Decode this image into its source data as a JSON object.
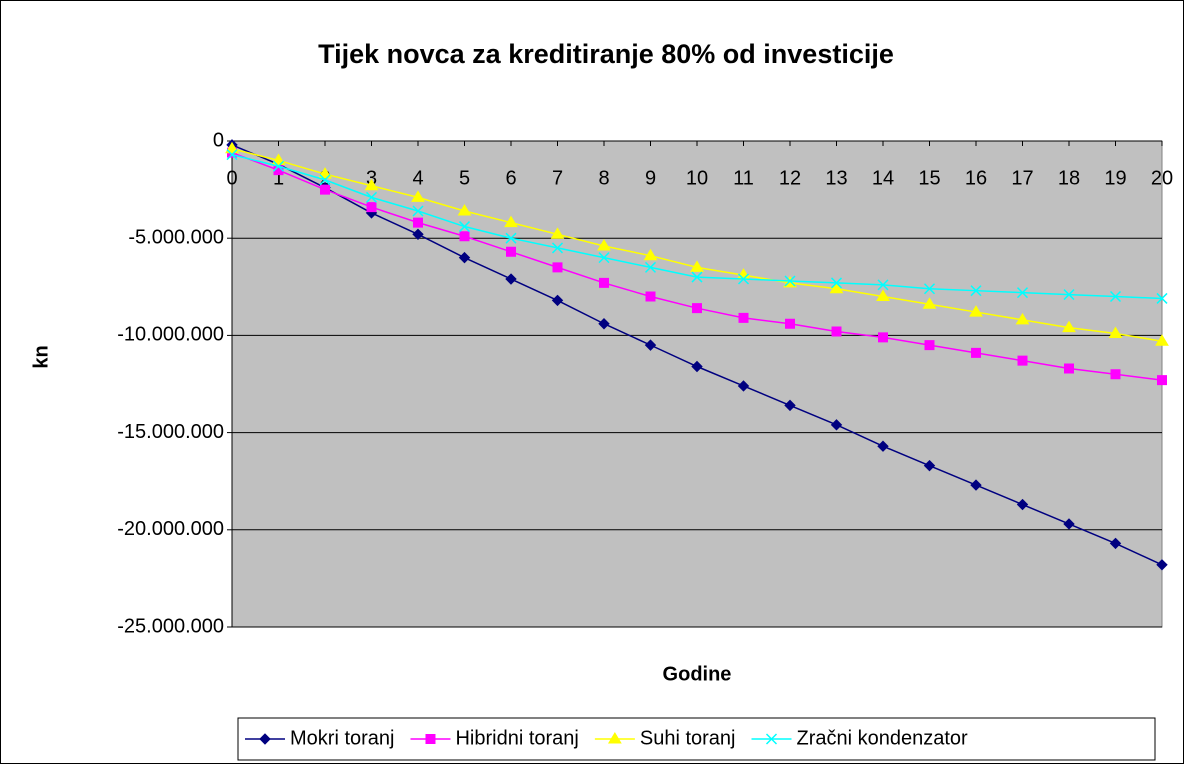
{
  "chart_data": {
    "type": "line",
    "title": "Tijek novca za kreditiranje 80% od investicije",
    "xlabel": "Godine",
    "ylabel": "kn",
    "x": [
      0,
      1,
      2,
      3,
      4,
      5,
      6,
      7,
      8,
      9,
      10,
      11,
      12,
      13,
      14,
      15,
      16,
      17,
      18,
      19,
      20
    ],
    "xlim": [
      0,
      20
    ],
    "xticks": [
      0,
      1,
      2,
      3,
      4,
      5,
      6,
      7,
      8,
      9,
      10,
      11,
      12,
      13,
      14,
      15,
      16,
      17,
      18,
      19,
      20
    ],
    "ylim": [
      -25000000,
      0
    ],
    "yticks": [
      0,
      {
        "value": -5000000,
        "label": "-5.000.000"
      },
      {
        "value": -10000000,
        "label": "-10.000.000"
      },
      {
        "value": -15000000,
        "label": "-15.000.000"
      },
      {
        "value": -20000000,
        "label": "-20.000.000"
      },
      {
        "value": -25000000,
        "label": "-25.000.000"
      }
    ],
    "grid": true,
    "legend": "bottom",
    "series": [
      {
        "name": "Mokri toranj",
        "color": "#000080",
        "marker": "diamond",
        "values": [
          -200000,
          -1200000,
          -2400000,
          -3700000,
          -4800000,
          -6000000,
          -7100000,
          -8200000,
          -9400000,
          -10500000,
          -11600000,
          -12600000,
          -13600000,
          -14600000,
          -15700000,
          -16700000,
          -17700000,
          -18700000,
          -19700000,
          -20700000,
          -21800000
        ]
      },
      {
        "name": "Hibridni toranj",
        "color": "#ff00ff",
        "marker": "square",
        "values": [
          -600000,
          -1500000,
          -2500000,
          -3400000,
          -4200000,
          -4900000,
          -5700000,
          -6500000,
          -7300000,
          -8000000,
          -8600000,
          -9100000,
          -9400000,
          -9800000,
          -10100000,
          -10500000,
          -10900000,
          -11300000,
          -11700000,
          -12000000,
          -12300000
        ]
      },
      {
        "name": "Suhi toranj",
        "color": "#ffff00",
        "marker": "triangle",
        "values": [
          -400000,
          -1000000,
          -1700000,
          -2300000,
          -2900000,
          -3600000,
          -4200000,
          -4800000,
          -5400000,
          -5900000,
          -6500000,
          -6900000,
          -7300000,
          -7600000,
          -8000000,
          -8400000,
          -8800000,
          -9200000,
          -9600000,
          -9900000,
          -10300000
        ]
      },
      {
        "name": "Zračni kondenzator",
        "color": "#00ffff",
        "marker": "cross",
        "values": [
          -700000,
          -1300000,
          -2000000,
          -2900000,
          -3600000,
          -4400000,
          -5000000,
          -5500000,
          -6000000,
          -6500000,
          -7000000,
          -7100000,
          -7200000,
          -7300000,
          -7400000,
          -7600000,
          -7700000,
          -7800000,
          -7900000,
          -8000000,
          -8100000
        ]
      }
    ]
  }
}
